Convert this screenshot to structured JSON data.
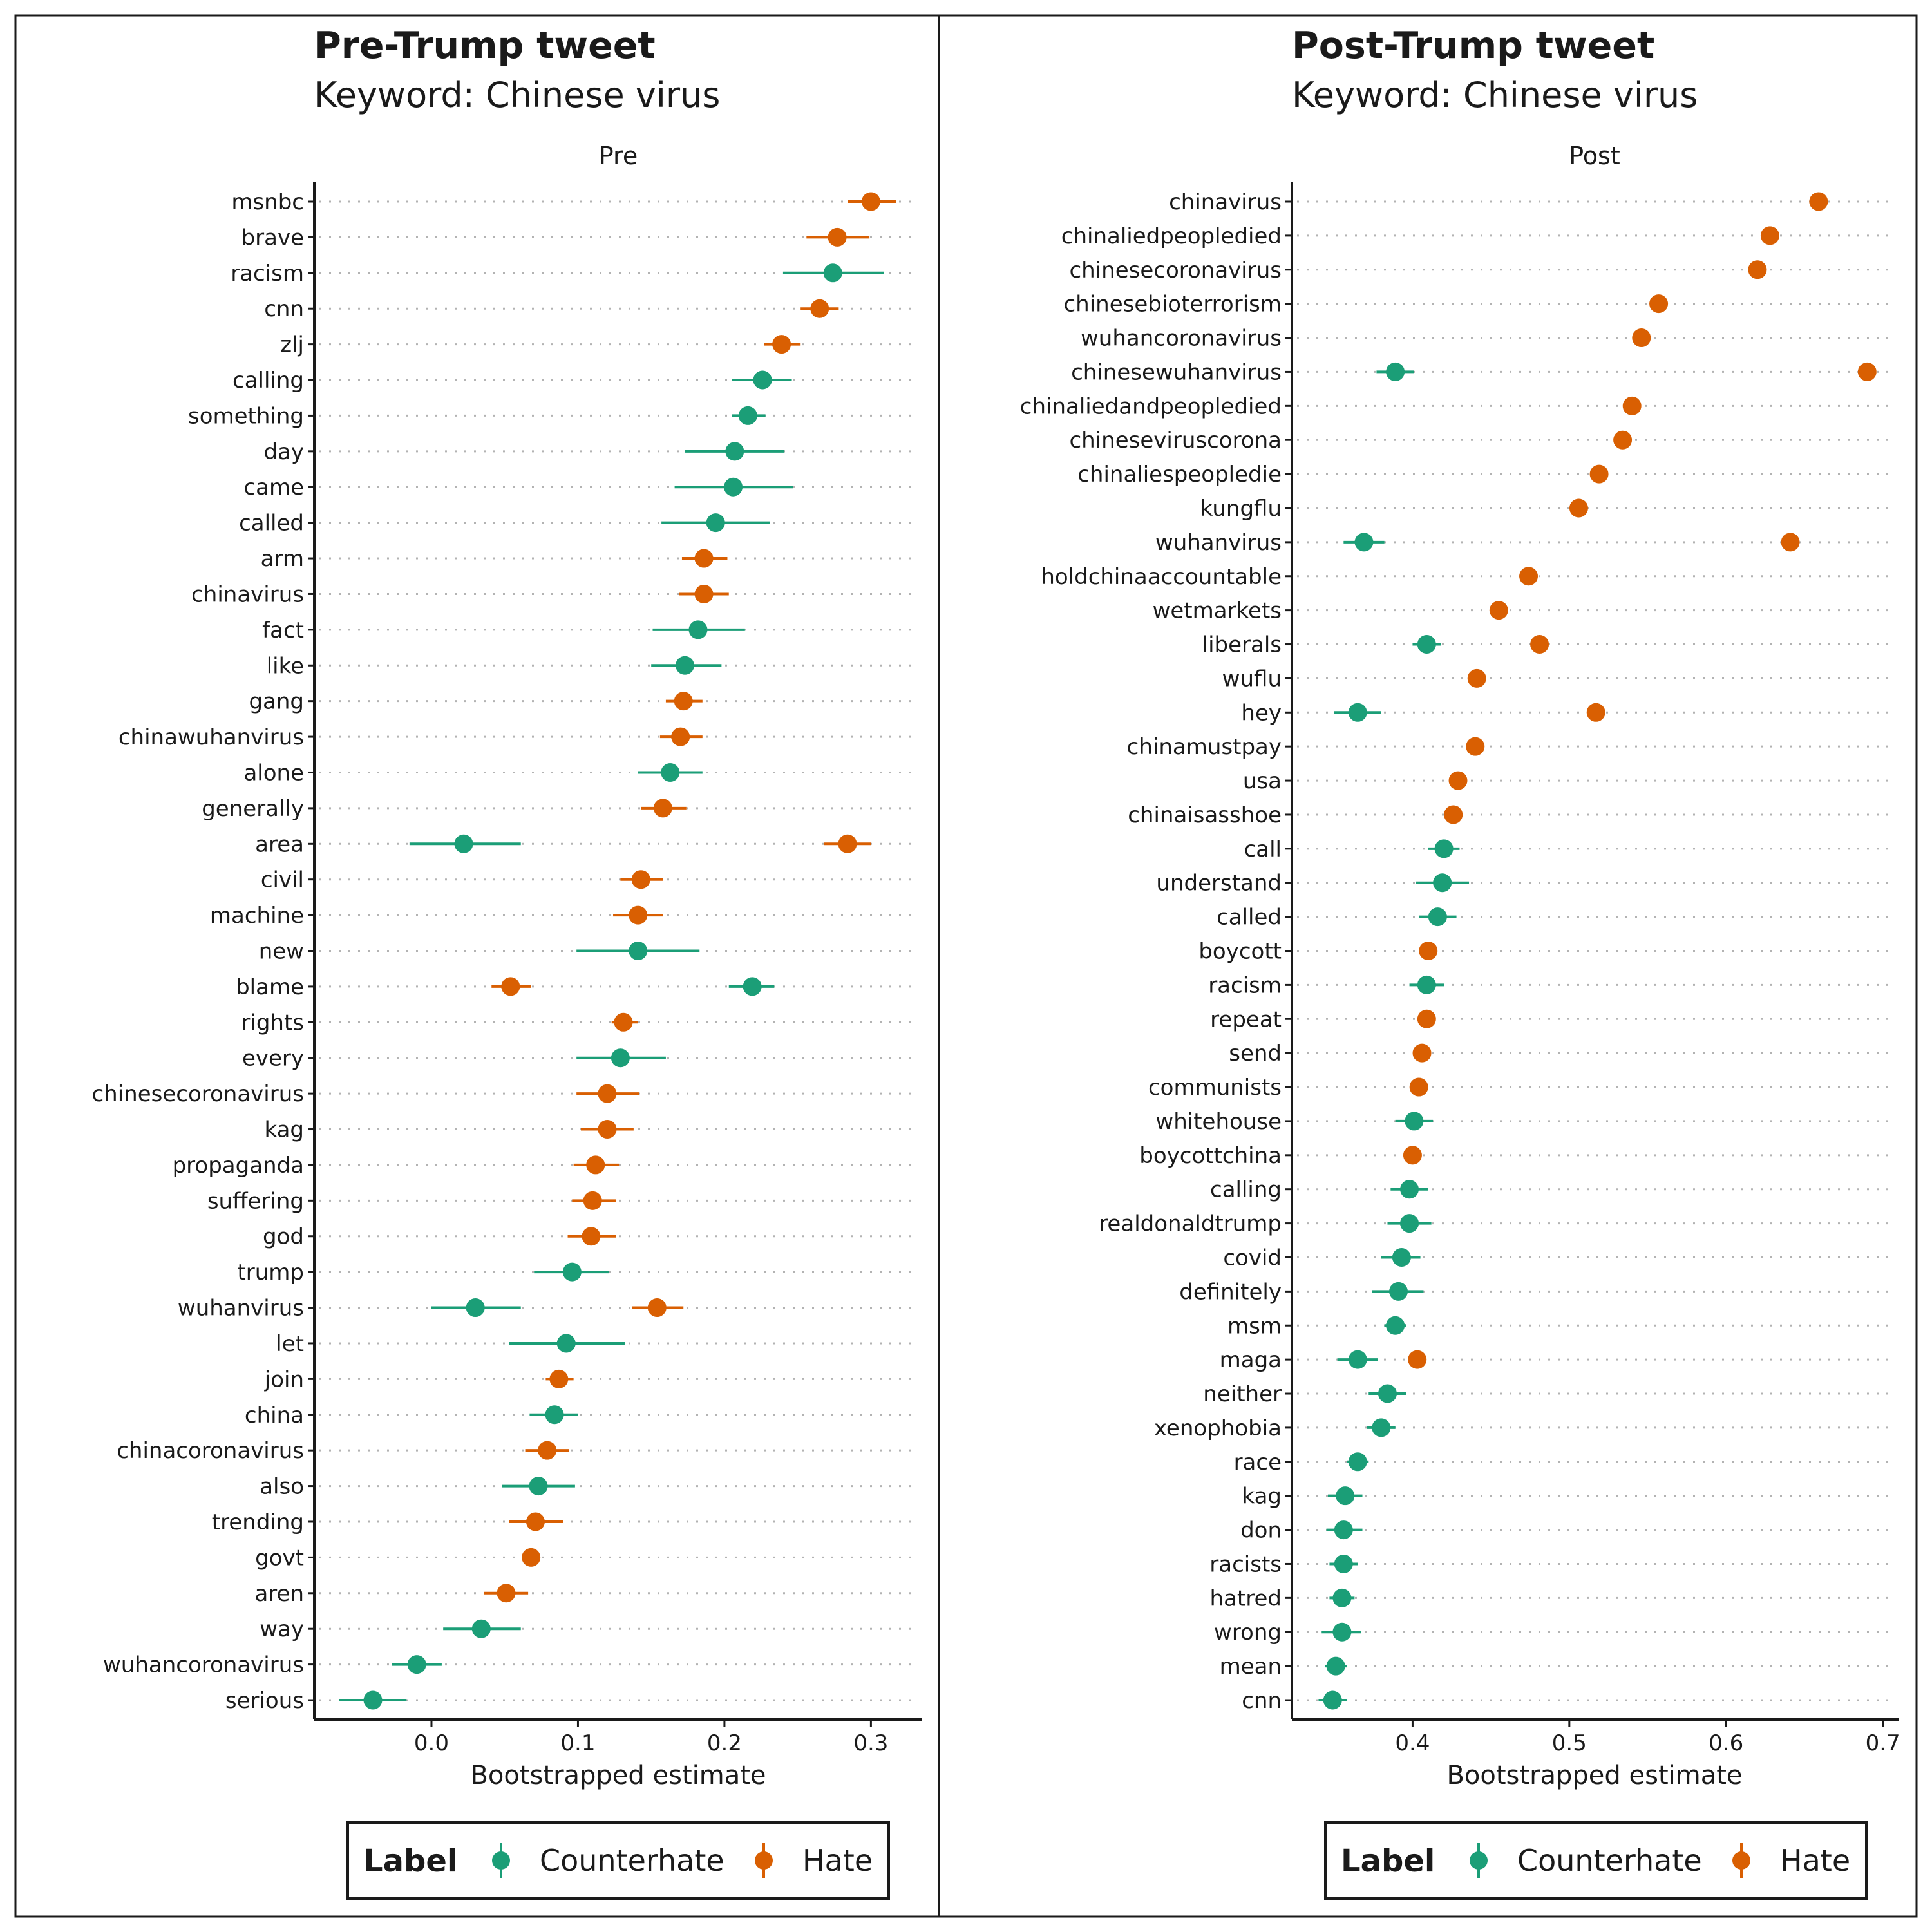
{
  "legend": {
    "title": "Label",
    "items": [
      {
        "name": "Counterhate",
        "color": "#1b9e77"
      },
      {
        "name": "Hate",
        "color": "#d95f02"
      }
    ]
  },
  "chart_data": [
    {
      "type": "dot-errorbar",
      "title": "Pre-Trump tweet",
      "subtitle": "Keyword: Chinese virus",
      "strip": "Pre",
      "xlabel": "Bootstrapped estimate",
      "ylabel": "",
      "xlim": [
        -0.08,
        0.335
      ],
      "xticks": [
        0.0,
        0.1,
        0.2,
        0.3
      ],
      "xtick_labels": [
        "0.0",
        "0.1",
        "0.2",
        "0.3"
      ],
      "categories": [
        "msnbc",
        "brave",
        "racism",
        "cnn",
        "zlj",
        "calling",
        "something",
        "day",
        "came",
        "called",
        "arm",
        "chinavirus",
        "fact",
        "like",
        "gang",
        "chinawuhanvirus",
        "alone",
        "generally",
        "area",
        "civil",
        "machine",
        "new",
        "blame",
        "rights",
        "every",
        "chinesecoronavirus",
        "kag",
        "propaganda",
        "suffering",
        "god",
        "trump",
        "wuhanvirus",
        "let",
        "join",
        "china",
        "chinacoronavirus",
        "also",
        "trending",
        "govt",
        "aren",
        "way",
        "wuhancoronavirus",
        "serious"
      ],
      "points": [
        {
          "word": "msnbc",
          "label": "Hate",
          "est": 0.3,
          "lo": 0.284,
          "hi": 0.317
        },
        {
          "word": "brave",
          "label": "Hate",
          "est": 0.277,
          "lo": 0.256,
          "hi": 0.299
        },
        {
          "word": "racism",
          "label": "Counterhate",
          "est": 0.274,
          "lo": 0.24,
          "hi": 0.309
        },
        {
          "word": "cnn",
          "label": "Hate",
          "est": 0.265,
          "lo": 0.252,
          "hi": 0.278
        },
        {
          "word": "zlj",
          "label": "Hate",
          "est": 0.239,
          "lo": 0.227,
          "hi": 0.252
        },
        {
          "word": "calling",
          "label": "Counterhate",
          "est": 0.226,
          "lo": 0.205,
          "hi": 0.246
        },
        {
          "word": "something",
          "label": "Counterhate",
          "est": 0.216,
          "lo": 0.205,
          "hi": 0.228
        },
        {
          "word": "day",
          "label": "Counterhate",
          "est": 0.207,
          "lo": 0.173,
          "hi": 0.241
        },
        {
          "word": "came",
          "label": "Counterhate",
          "est": 0.206,
          "lo": 0.166,
          "hi": 0.247
        },
        {
          "word": "called",
          "label": "Counterhate",
          "est": 0.194,
          "lo": 0.157,
          "hi": 0.231
        },
        {
          "word": "arm",
          "label": "Hate",
          "est": 0.186,
          "lo": 0.171,
          "hi": 0.202
        },
        {
          "word": "chinavirus",
          "label": "Hate",
          "est": 0.186,
          "lo": 0.169,
          "hi": 0.203
        },
        {
          "word": "fact",
          "label": "Counterhate",
          "est": 0.182,
          "lo": 0.151,
          "hi": 0.214
        },
        {
          "word": "like",
          "label": "Counterhate",
          "est": 0.173,
          "lo": 0.15,
          "hi": 0.198
        },
        {
          "word": "gang",
          "label": "Hate",
          "est": 0.172,
          "lo": 0.16,
          "hi": 0.185
        },
        {
          "word": "chinawuhanvirus",
          "label": "Hate",
          "est": 0.17,
          "lo": 0.156,
          "hi": 0.185
        },
        {
          "word": "alone",
          "label": "Counterhate",
          "est": 0.163,
          "lo": 0.141,
          "hi": 0.185
        },
        {
          "word": "generally",
          "label": "Hate",
          "est": 0.158,
          "lo": 0.143,
          "hi": 0.174
        },
        {
          "word": "area",
          "label": "Counterhate",
          "est": 0.022,
          "lo": -0.015,
          "hi": 0.061
        },
        {
          "word": "area",
          "label": "Hate",
          "est": 0.284,
          "lo": 0.268,
          "hi": 0.3
        },
        {
          "word": "civil",
          "label": "Hate",
          "est": 0.143,
          "lo": 0.129,
          "hi": 0.158
        },
        {
          "word": "machine",
          "label": "Hate",
          "est": 0.141,
          "lo": 0.124,
          "hi": 0.158
        },
        {
          "word": "new",
          "label": "Counterhate",
          "est": 0.141,
          "lo": 0.099,
          "hi": 0.183
        },
        {
          "word": "blame",
          "label": "Counterhate",
          "est": 0.219,
          "lo": 0.203,
          "hi": 0.234
        },
        {
          "word": "blame",
          "label": "Hate",
          "est": 0.054,
          "lo": 0.041,
          "hi": 0.068
        },
        {
          "word": "rights",
          "label": "Hate",
          "est": 0.131,
          "lo": 0.123,
          "hi": 0.141
        },
        {
          "word": "every",
          "label": "Counterhate",
          "est": 0.129,
          "lo": 0.099,
          "hi": 0.16
        },
        {
          "word": "chinesecoronavirus",
          "label": "Hate",
          "est": 0.12,
          "lo": 0.099,
          "hi": 0.142
        },
        {
          "word": "kag",
          "label": "Hate",
          "est": 0.12,
          "lo": 0.102,
          "hi": 0.138
        },
        {
          "word": "propaganda",
          "label": "Hate",
          "est": 0.112,
          "lo": 0.097,
          "hi": 0.128
        },
        {
          "word": "suffering",
          "label": "Hate",
          "est": 0.11,
          "lo": 0.096,
          "hi": 0.126
        },
        {
          "word": "god",
          "label": "Hate",
          "est": 0.109,
          "lo": 0.093,
          "hi": 0.126
        },
        {
          "word": "trump",
          "label": "Counterhate",
          "est": 0.096,
          "lo": 0.07,
          "hi": 0.121
        },
        {
          "word": "wuhanvirus",
          "label": "Counterhate",
          "est": 0.03,
          "lo": 0.0,
          "hi": 0.061
        },
        {
          "word": "wuhanvirus",
          "label": "Hate",
          "est": 0.154,
          "lo": 0.137,
          "hi": 0.172
        },
        {
          "word": "let",
          "label": "Counterhate",
          "est": 0.092,
          "lo": 0.053,
          "hi": 0.132
        },
        {
          "word": "join",
          "label": "Hate",
          "est": 0.087,
          "lo": 0.078,
          "hi": 0.097
        },
        {
          "word": "china",
          "label": "Counterhate",
          "est": 0.084,
          "lo": 0.067,
          "hi": 0.1
        },
        {
          "word": "chinacoronavirus",
          "label": "Hate",
          "est": 0.079,
          "lo": 0.064,
          "hi": 0.094
        },
        {
          "word": "also",
          "label": "Counterhate",
          "est": 0.073,
          "lo": 0.048,
          "hi": 0.098
        },
        {
          "word": "trending",
          "label": "Hate",
          "est": 0.071,
          "lo": 0.053,
          "hi": 0.09
        },
        {
          "word": "govt",
          "label": "Hate",
          "est": 0.068,
          "lo": 0.062,
          "hi": 0.074
        },
        {
          "word": "aren",
          "label": "Hate",
          "est": 0.051,
          "lo": 0.036,
          "hi": 0.066
        },
        {
          "word": "way",
          "label": "Counterhate",
          "est": 0.034,
          "lo": 0.008,
          "hi": 0.061
        },
        {
          "word": "wuhancoronavirus",
          "label": "Counterhate",
          "est": -0.01,
          "lo": -0.027,
          "hi": 0.007
        },
        {
          "word": "serious",
          "label": "Counterhate",
          "est": -0.04,
          "lo": -0.063,
          "hi": -0.017
        }
      ]
    },
    {
      "type": "dot-errorbar",
      "title": "Post-Trump tweet",
      "subtitle": "Keyword: Chinese virus",
      "strip": "Post",
      "xlabel": "Bootstrapped estimate",
      "ylabel": "",
      "xlim": [
        0.323,
        0.71
      ],
      "xticks": [
        0.4,
        0.5,
        0.6,
        0.7
      ],
      "xtick_labels": [
        "0.4",
        "0.5",
        "0.6",
        "0.7"
      ],
      "categories": [
        "chinavirus",
        "chinaliedpeopledied",
        "chinesecoronavirus",
        "chinesebioterrorism",
        "wuhancoronavirus",
        "chinesewuhanvirus",
        "chinaliedandpeopledied",
        "chineseviruscorona",
        "chinaliespeopledie",
        "kungflu",
        "wuhanvirus",
        "holdchinaaccountable",
        "wetmarkets",
        "liberals",
        "wuflu",
        "hey",
        "chinamustpay",
        "usa",
        "chinaisasshoe",
        "call",
        "understand",
        "called",
        "boycott",
        "racism",
        "repeat",
        "send",
        "communists",
        "whitehouse",
        "boycottchina",
        "calling",
        "realdonaldtrump",
        "covid",
        "definitely",
        "msm",
        "maga",
        "neither",
        "xenophobia",
        "race",
        "kag",
        "don",
        "racists",
        "hatred",
        "wrong",
        "mean",
        "cnn"
      ],
      "points": [
        {
          "word": "chinavirus",
          "label": "Hate",
          "est": 0.659,
          "lo": 0.655,
          "hi": 0.663
        },
        {
          "word": "chinaliedpeopledied",
          "label": "Hate",
          "est": 0.628,
          "lo": 0.624,
          "hi": 0.632
        },
        {
          "word": "chinesecoronavirus",
          "label": "Hate",
          "est": 0.62,
          "lo": 0.616,
          "hi": 0.624
        },
        {
          "word": "chinesebioterrorism",
          "label": "Hate",
          "est": 0.557,
          "lo": 0.553,
          "hi": 0.561
        },
        {
          "word": "wuhancoronavirus",
          "label": "Hate",
          "est": 0.546,
          "lo": 0.542,
          "hi": 0.55
        },
        {
          "word": "chinesewuhanvirus",
          "label": "Counterhate",
          "est": 0.389,
          "lo": 0.377,
          "hi": 0.401
        },
        {
          "word": "chinesewuhanvirus",
          "label": "Hate",
          "est": 0.69,
          "lo": 0.686,
          "hi": 0.694
        },
        {
          "word": "chinaliedandpeopledied",
          "label": "Hate",
          "est": 0.54,
          "lo": 0.536,
          "hi": 0.544
        },
        {
          "word": "chineseviruscorona",
          "label": "Hate",
          "est": 0.534,
          "lo": 0.53,
          "hi": 0.538
        },
        {
          "word": "chinaliespeopledie",
          "label": "Hate",
          "est": 0.519,
          "lo": 0.515,
          "hi": 0.523
        },
        {
          "word": "kungflu",
          "label": "Hate",
          "est": 0.506,
          "lo": 0.502,
          "hi": 0.51
        },
        {
          "word": "wuhanvirus",
          "label": "Counterhate",
          "est": 0.369,
          "lo": 0.356,
          "hi": 0.382
        },
        {
          "word": "wuhanvirus",
          "label": "Hate",
          "est": 0.641,
          "lo": 0.637,
          "hi": 0.645
        },
        {
          "word": "holdchinaaccountable",
          "label": "Hate",
          "est": 0.474,
          "lo": 0.47,
          "hi": 0.478
        },
        {
          "word": "wetmarkets",
          "label": "Hate",
          "est": 0.455,
          "lo": 0.451,
          "hi": 0.459
        },
        {
          "word": "liberals",
          "label": "Counterhate",
          "est": 0.409,
          "lo": 0.4,
          "hi": 0.418
        },
        {
          "word": "liberals",
          "label": "Hate",
          "est": 0.481,
          "lo": 0.477,
          "hi": 0.485
        },
        {
          "word": "wuflu",
          "label": "Hate",
          "est": 0.441,
          "lo": 0.437,
          "hi": 0.445
        },
        {
          "word": "hey",
          "label": "Counterhate",
          "est": 0.365,
          "lo": 0.35,
          "hi": 0.38
        },
        {
          "word": "hey",
          "label": "Hate",
          "est": 0.517,
          "lo": 0.513,
          "hi": 0.521
        },
        {
          "word": "chinamustpay",
          "label": "Hate",
          "est": 0.44,
          "lo": 0.436,
          "hi": 0.444
        },
        {
          "word": "usa",
          "label": "Hate",
          "est": 0.429,
          "lo": 0.425,
          "hi": 0.433
        },
        {
          "word": "chinaisasshoe",
          "label": "Hate",
          "est": 0.426,
          "lo": 0.422,
          "hi": 0.43
        },
        {
          "word": "call",
          "label": "Counterhate",
          "est": 0.42,
          "lo": 0.41,
          "hi": 0.43
        },
        {
          "word": "understand",
          "label": "Counterhate",
          "est": 0.419,
          "lo": 0.402,
          "hi": 0.436
        },
        {
          "word": "called",
          "label": "Counterhate",
          "est": 0.416,
          "lo": 0.404,
          "hi": 0.428
        },
        {
          "word": "boycott",
          "label": "Hate",
          "est": 0.41,
          "lo": 0.406,
          "hi": 0.414
        },
        {
          "word": "racism",
          "label": "Counterhate",
          "est": 0.409,
          "lo": 0.398,
          "hi": 0.42
        },
        {
          "word": "repeat",
          "label": "Hate",
          "est": 0.409,
          "lo": 0.405,
          "hi": 0.413
        },
        {
          "word": "send",
          "label": "Hate",
          "est": 0.406,
          "lo": 0.402,
          "hi": 0.41
        },
        {
          "word": "communists",
          "label": "Hate",
          "est": 0.404,
          "lo": 0.4,
          "hi": 0.408
        },
        {
          "word": "whitehouse",
          "label": "Counterhate",
          "est": 0.401,
          "lo": 0.389,
          "hi": 0.413
        },
        {
          "word": "boycottchina",
          "label": "Hate",
          "est": 0.4,
          "lo": 0.396,
          "hi": 0.404
        },
        {
          "word": "calling",
          "label": "Counterhate",
          "est": 0.398,
          "lo": 0.386,
          "hi": 0.41
        },
        {
          "word": "realdonaldtrump",
          "label": "Counterhate",
          "est": 0.398,
          "lo": 0.384,
          "hi": 0.412
        },
        {
          "word": "covid",
          "label": "Counterhate",
          "est": 0.393,
          "lo": 0.38,
          "hi": 0.405
        },
        {
          "word": "definitely",
          "label": "Counterhate",
          "est": 0.391,
          "lo": 0.374,
          "hi": 0.407
        },
        {
          "word": "msm",
          "label": "Counterhate",
          "est": 0.389,
          "lo": 0.382,
          "hi": 0.396
        },
        {
          "word": "maga",
          "label": "Counterhate",
          "est": 0.365,
          "lo": 0.352,
          "hi": 0.378
        },
        {
          "word": "maga",
          "label": "Hate",
          "est": 0.403,
          "lo": 0.399,
          "hi": 0.407
        },
        {
          "word": "neither",
          "label": "Counterhate",
          "est": 0.384,
          "lo": 0.372,
          "hi": 0.396
        },
        {
          "word": "xenophobia",
          "label": "Counterhate",
          "est": 0.38,
          "lo": 0.371,
          "hi": 0.389
        },
        {
          "word": "race",
          "label": "Counterhate",
          "est": 0.365,
          "lo": 0.358,
          "hi": 0.372
        },
        {
          "word": "kag",
          "label": "Counterhate",
          "est": 0.357,
          "lo": 0.346,
          "hi": 0.368
        },
        {
          "word": "don",
          "label": "Counterhate",
          "est": 0.356,
          "lo": 0.345,
          "hi": 0.368
        },
        {
          "word": "racists",
          "label": "Counterhate",
          "est": 0.356,
          "lo": 0.347,
          "hi": 0.365
        },
        {
          "word": "hatred",
          "label": "Counterhate",
          "est": 0.355,
          "lo": 0.347,
          "hi": 0.363
        },
        {
          "word": "wrong",
          "label": "Counterhate",
          "est": 0.355,
          "lo": 0.342,
          "hi": 0.367
        },
        {
          "word": "mean",
          "label": "Counterhate",
          "est": 0.351,
          "lo": 0.344,
          "hi": 0.358
        },
        {
          "word": "cnn",
          "label": "Counterhate",
          "est": 0.349,
          "lo": 0.34,
          "hi": 0.358
        }
      ]
    }
  ]
}
